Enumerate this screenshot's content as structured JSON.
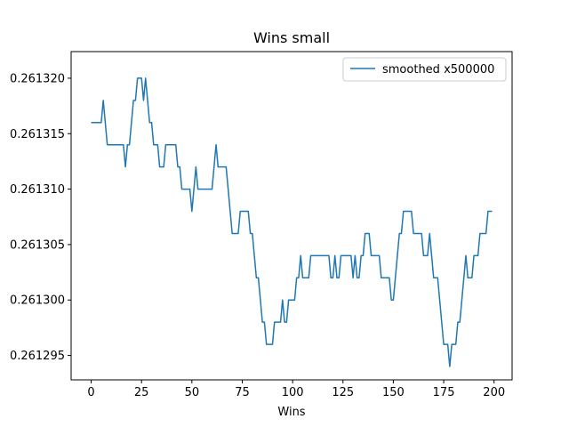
{
  "chart_data": {
    "type": "line",
    "title": "Wins small",
    "xlabel": "Wins",
    "ylabel": "",
    "xlim": [
      -9.95,
      208.95
    ],
    "ylim": [
      0.2612928,
      0.2613224
    ],
    "x_ticks": [
      0,
      25,
      50,
      75,
      100,
      125,
      150,
      175,
      200
    ],
    "x_tick_labels": [
      "0",
      "25",
      "50",
      "75",
      "100",
      "125",
      "150",
      "175",
      "200"
    ],
    "y_ticks": [
      0.261295,
      0.2613,
      0.261305,
      0.26131,
      0.261315,
      0.26132
    ],
    "y_tick_labels": [
      "0.261295",
      "0.261300",
      "0.261305",
      "0.261310",
      "0.261315",
      "0.261320"
    ],
    "grid": false,
    "legend_position": "top-right",
    "series": [
      {
        "name": "smoothed x500000",
        "color": "#1f77b4",
        "values": [
          0.261316,
          0.261316,
          0.261316,
          0.261316,
          0.261316,
          0.261316,
          0.261318,
          0.261316,
          0.261314,
          0.261314,
          0.261314,
          0.261314,
          0.261314,
          0.261314,
          0.261314,
          0.261314,
          0.261314,
          0.261312,
          0.261314,
          0.261314,
          0.261316,
          0.261318,
          0.261318,
          0.26132,
          0.26132,
          0.26132,
          0.261318,
          0.26132,
          0.261318,
          0.261316,
          0.261316,
          0.261314,
          0.261314,
          0.261314,
          0.261312,
          0.261312,
          0.261312,
          0.261314,
          0.261314,
          0.261314,
          0.261314,
          0.261314,
          0.261314,
          0.261312,
          0.261312,
          0.26131,
          0.26131,
          0.26131,
          0.26131,
          0.26131,
          0.261308,
          0.26131,
          0.261312,
          0.26131,
          0.26131,
          0.26131,
          0.26131,
          0.26131,
          0.26131,
          0.26131,
          0.26131,
          0.261312,
          0.261314,
          0.261312,
          0.261312,
          0.261312,
          0.261312,
          0.261312,
          0.26131,
          0.261308,
          0.261306,
          0.261306,
          0.261306,
          0.261306,
          0.261308,
          0.261308,
          0.261308,
          0.261308,
          0.261308,
          0.261306,
          0.261306,
          0.261304,
          0.261302,
          0.261302,
          0.2613,
          0.261298,
          0.261298,
          0.261296,
          0.261296,
          0.261296,
          0.261296,
          0.261298,
          0.261298,
          0.261298,
          0.261298,
          0.2613,
          0.261298,
          0.261298,
          0.2613,
          0.2613,
          0.2613,
          0.2613,
          0.261302,
          0.261302,
          0.261304,
          0.261302,
          0.261302,
          0.261302,
          0.261302,
          0.261304,
          0.261304,
          0.261304,
          0.261304,
          0.261304,
          0.261304,
          0.261304,
          0.261304,
          0.261304,
          0.261304,
          0.261302,
          0.261302,
          0.261304,
          0.261302,
          0.261302,
          0.261304,
          0.261304,
          0.261304,
          0.261304,
          0.261304,
          0.261304,
          0.261302,
          0.261304,
          0.261302,
          0.261302,
          0.261304,
          0.261304,
          0.261306,
          0.261306,
          0.261306,
          0.261304,
          0.261304,
          0.261304,
          0.261304,
          0.261304,
          0.261302,
          0.261302,
          0.261302,
          0.261302,
          0.261302,
          0.2613,
          0.2613,
          0.261302,
          0.261304,
          0.261306,
          0.261306,
          0.261308,
          0.261308,
          0.261308,
          0.261308,
          0.261308,
          0.261306,
          0.261306,
          0.261306,
          0.261306,
          0.261306,
          0.261304,
          0.261304,
          0.261304,
          0.261306,
          0.261304,
          0.261302,
          0.261302,
          0.261302,
          0.2613,
          0.261298,
          0.261296,
          0.261296,
          0.261296,
          0.261294,
          0.261296,
          0.261296,
          0.261296,
          0.261298,
          0.261298,
          0.2613,
          0.261302,
          0.261304,
          0.261302,
          0.261302,
          0.261302,
          0.261304,
          0.261304,
          0.261304,
          0.261306,
          0.261306,
          0.261306,
          0.261306,
          0.261308,
          0.261308,
          0.261308
        ]
      }
    ]
  }
}
